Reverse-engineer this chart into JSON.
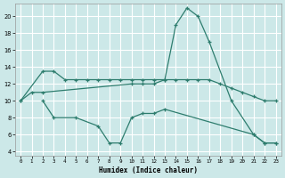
{
  "xlabel": "Humidex (Indice chaleur)",
  "xlim": [
    -0.5,
    23.5
  ],
  "ylim": [
    3.5,
    21.5
  ],
  "yticks": [
    4,
    6,
    8,
    10,
    12,
    14,
    16,
    18,
    20
  ],
  "xticks": [
    0,
    1,
    2,
    3,
    4,
    5,
    6,
    7,
    8,
    9,
    10,
    11,
    12,
    13,
    14,
    15,
    16,
    17,
    18,
    19,
    20,
    21,
    22,
    23
  ],
  "bg_color": "#cce8e8",
  "grid_color": "#ffffff",
  "line_color": "#2e7d6e",
  "curve_main_x": [
    0,
    1,
    2,
    10,
    11,
    12,
    13,
    14,
    15,
    16,
    17,
    19,
    21,
    22,
    23
  ],
  "curve_main_y": [
    10,
    11,
    11,
    12,
    12,
    12,
    12.5,
    19,
    21,
    20,
    17,
    10,
    6,
    5,
    5
  ],
  "curve_upper_x": [
    0,
    2,
    3,
    4,
    5,
    6,
    7,
    8,
    9,
    10,
    11,
    12,
    13,
    14,
    15,
    16,
    17,
    18,
    19,
    20,
    21,
    22,
    23
  ],
  "curve_upper_y": [
    10,
    13.5,
    13.5,
    12.5,
    12.5,
    12.5,
    12.5,
    12.5,
    12.5,
    12.5,
    12.5,
    12.5,
    12.5,
    12.5,
    12.5,
    12.5,
    12.5,
    12,
    11.5,
    11,
    10.5,
    10,
    10
  ],
  "curve_lower_x": [
    2,
    3,
    5,
    7,
    8,
    9,
    10,
    11,
    12,
    13,
    21,
    22,
    23
  ],
  "curve_lower_y": [
    10,
    8,
    8,
    7,
    5,
    5,
    8,
    8.5,
    8.5,
    9,
    6,
    5,
    5
  ]
}
